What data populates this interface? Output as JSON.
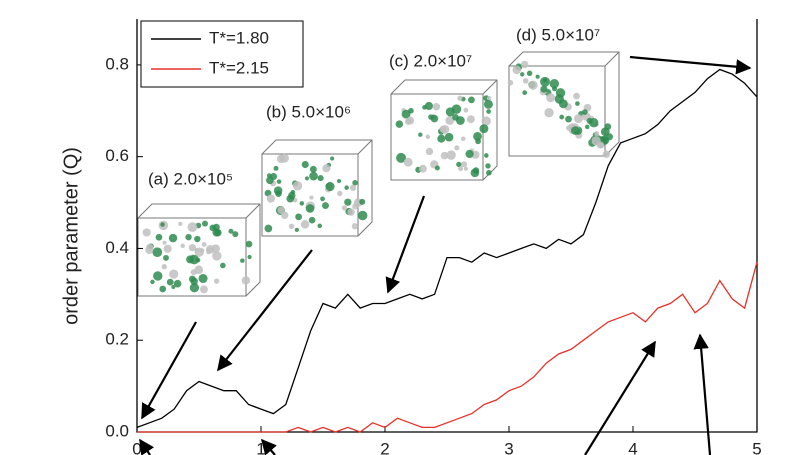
{
  "chart_data": {
    "type": "line",
    "ylabel": "order parameter (Q)",
    "x": [
      0,
      0.1,
      0.2,
      0.3,
      0.4,
      0.5,
      0.6,
      0.7,
      0.8,
      0.9,
      1.0,
      1.1,
      1.2,
      1.3,
      1.4,
      1.5,
      1.6,
      1.7,
      1.8,
      1.9,
      2.0,
      2.1,
      2.2,
      2.3,
      2.4,
      2.5,
      2.6,
      2.7,
      2.8,
      2.9,
      3.0,
      3.1,
      3.2,
      3.3,
      3.4,
      3.5,
      3.6,
      3.7,
      3.8,
      3.9,
      4.0,
      4.1,
      4.2,
      4.3,
      4.4,
      4.5,
      4.6,
      4.7,
      4.8,
      4.9,
      5.0
    ],
    "series": [
      {
        "name": "T*=1.80",
        "color": "#000000",
        "values": [
          0.01,
          0.02,
          0.03,
          0.05,
          0.09,
          0.11,
          0.1,
          0.09,
          0.09,
          0.06,
          0.05,
          0.04,
          0.06,
          0.14,
          0.22,
          0.28,
          0.27,
          0.3,
          0.27,
          0.28,
          0.28,
          0.29,
          0.3,
          0.29,
          0.3,
          0.38,
          0.38,
          0.37,
          0.39,
          0.38,
          0.39,
          0.4,
          0.41,
          0.4,
          0.42,
          0.41,
          0.43,
          0.5,
          0.58,
          0.63,
          0.64,
          0.65,
          0.67,
          0.7,
          0.72,
          0.74,
          0.77,
          0.79,
          0.78,
          0.76,
          0.73
        ]
      },
      {
        "name": "T*=2.15",
        "color": "#e8302a",
        "values": [
          0,
          0,
          0,
          0,
          0,
          0,
          0,
          0,
          0,
          0,
          0,
          0,
          0,
          0.01,
          0,
          0.01,
          0,
          0.01,
          0,
          0.02,
          0.01,
          0.03,
          0.02,
          0.01,
          0.01,
          0.02,
          0.03,
          0.04,
          0.06,
          0.07,
          0.09,
          0.1,
          0.12,
          0.15,
          0.17,
          0.18,
          0.2,
          0.22,
          0.24,
          0.25,
          0.26,
          0.24,
          0.27,
          0.28,
          0.3,
          0.26,
          0.28,
          0.33,
          0.29,
          0.27,
          0.37
        ]
      }
    ],
    "xlim": [
      0,
      5
    ],
    "xticks": [
      0,
      1,
      2,
      3,
      4,
      5
    ],
    "ylim": [
      0,
      0.9
    ],
    "yticks": [
      {
        "value": 0,
        "label": "0.0"
      },
      {
        "value": 0.2,
        "label": "0.2"
      },
      {
        "value": 0.4,
        "label": "0.4"
      },
      {
        "value": 0.6,
        "label": "0.6"
      },
      {
        "value": 0.8,
        "label": "0.8"
      }
    ],
    "legend": "top-left",
    "annotations": [
      "(a) 2.0×10⁵",
      "(b) 5.0×10⁶",
      "(c) 2.0×10⁷",
      "(d) 5.0×10⁷"
    ]
  }
}
